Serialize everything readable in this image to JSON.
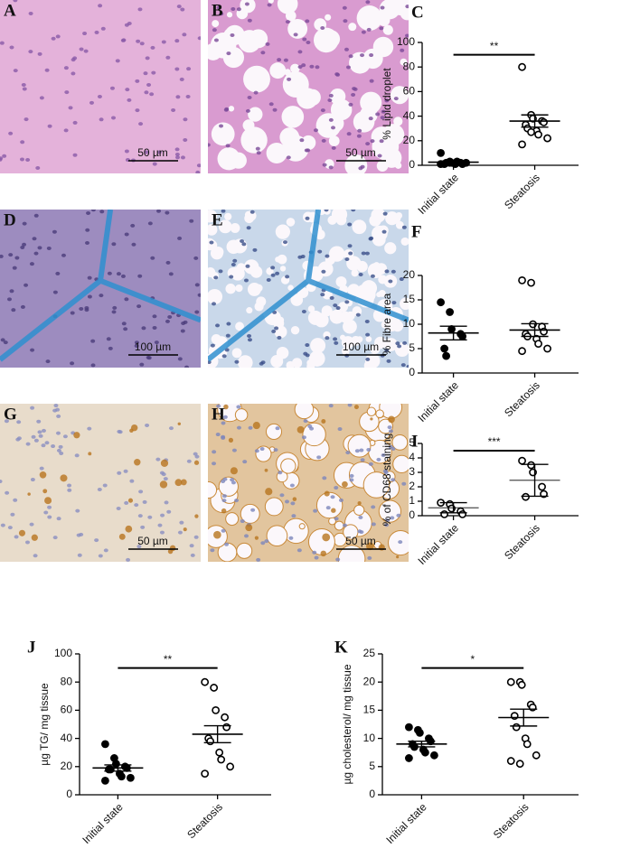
{
  "images": [
    {
      "label": "A",
      "scale_bar": "50 µm"
    },
    {
      "label": "B",
      "scale_bar": "50 µm"
    },
    {
      "label": "D",
      "scale_bar": "100 µm"
    },
    {
      "label": "E",
      "scale_bar": "100 µm"
    },
    {
      "label": "G",
      "scale_bar": "50 µm"
    },
    {
      "label": "H",
      "scale_bar": "50 µm"
    }
  ],
  "chart_data": [
    {
      "type": "dotplot",
      "panel": "C",
      "ylabel": "% Lipid droplet",
      "categories": [
        "Initial state",
        "Steatosis"
      ],
      "points": [
        [
          10,
          3,
          2,
          2,
          1,
          1,
          2,
          1,
          3,
          2,
          1,
          2
        ],
        [
          80,
          41,
          38,
          36,
          35,
          33,
          30,
          28,
          25,
          22,
          17,
          27
        ]
      ],
      "means": [
        2.5,
        36
      ],
      "errors": [
        0.8,
        5
      ],
      "marker_fill": [
        "#000000",
        "#ffffff"
      ],
      "ylim": [
        0,
        100
      ],
      "yticks": [
        0,
        20,
        40,
        60,
        80,
        100
      ],
      "annotation": "**"
    },
    {
      "type": "dotplot",
      "panel": "F",
      "ylabel": "% Fibre area",
      "categories": [
        "Initial state",
        "Steatosis"
      ],
      "points": [
        [
          14.5,
          12.5,
          9,
          8,
          7.5,
          5,
          3.5
        ],
        [
          19,
          18.5,
          10,
          9.5,
          8.5,
          8,
          7.5,
          7,
          6,
          5,
          4.5
        ]
      ],
      "means": [
        8.2,
        8.8
      ],
      "errors": [
        1.4,
        1.3
      ],
      "marker_fill": [
        "#000000",
        "#ffffff"
      ],
      "ylim": [
        0,
        20
      ],
      "yticks": [
        0,
        5,
        10,
        15,
        20
      ]
    },
    {
      "type": "dotplot",
      "panel": "I",
      "ylabel": "% of CD68 staining",
      "categories": [
        "Initial state",
        "Steatosis"
      ],
      "points": [
        [
          0.9,
          0.8,
          0.5,
          0.3,
          0.1,
          0.1
        ],
        [
          3.8,
          3.5,
          3.0,
          2.0,
          1.5,
          1.3
        ]
      ],
      "means": [
        0.55,
        2.45
      ],
      "errors": [
        0.35,
        1.1
      ],
      "marker_fill": [
        "#ffffff",
        "#ffffff"
      ],
      "ylim": [
        0,
        5
      ],
      "yticks": [
        0,
        1,
        2,
        3,
        4,
        5
      ],
      "annotation": "***"
    },
    {
      "type": "dotplot",
      "panel": "J",
      "ylabel": "µg TG/ mg tissue",
      "categories": [
        "Initial state",
        "Steatosis"
      ],
      "points": [
        [
          36,
          26,
          22,
          20,
          19,
          18,
          18,
          15,
          13,
          12,
          10
        ],
        [
          80,
          76,
          60,
          55,
          48,
          40,
          38,
          30,
          25,
          20,
          15
        ]
      ],
      "means": [
        19,
        43
      ],
      "errors": [
        2.2,
        6
      ],
      "marker_fill": [
        "#000000",
        "#ffffff"
      ],
      "ylim": [
        0,
        100
      ],
      "yticks": [
        0,
        20,
        40,
        60,
        80,
        100
      ],
      "annotation": "**"
    },
    {
      "type": "dotplot",
      "panel": "K",
      "ylabel": "µg cholesterol/ mg tissue",
      "categories": [
        "Initial state",
        "Steatosis"
      ],
      "points": [
        [
          12,
          11.5,
          11,
          10,
          9.5,
          9,
          8.5,
          8,
          7.5,
          7,
          6.5
        ],
        [
          20,
          20,
          19.5,
          16,
          15.5,
          14,
          12,
          10,
          9,
          7,
          6,
          5.5
        ]
      ],
      "means": [
        9,
        13.7
      ],
      "errors": [
        0.5,
        1.5
      ],
      "marker_fill": [
        "#000000",
        "#ffffff"
      ],
      "ylim": [
        0,
        25
      ],
      "yticks": [
        0,
        5,
        10,
        15,
        20,
        25
      ],
      "annotation": "*"
    }
  ]
}
